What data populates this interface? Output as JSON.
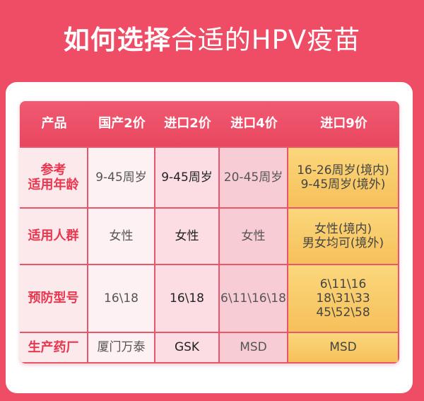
{
  "title": {
    "bold": "如何选择",
    "regular": "合适的HPV疫苗"
  },
  "table": {
    "headers": [
      "产品",
      "国产2价",
      "进口2价",
      "进口4价",
      "进口9价"
    ],
    "rows": [
      {
        "label": [
          "参考",
          "适用年龄"
        ],
        "cells": [
          [
            "9-45周岁"
          ],
          [
            "9-45周岁"
          ],
          [
            "20-45周岁"
          ],
          [
            "16-26周岁(境内)",
            "9-45周岁(境外)"
          ]
        ]
      },
      {
        "label": [
          "适用人群"
        ],
        "cells": [
          [
            "女性"
          ],
          [
            "女性"
          ],
          [
            "女性"
          ],
          [
            "女性(境内)",
            "男女均可(境外)"
          ]
        ]
      },
      {
        "label": [
          "预防型号"
        ],
        "cells": [
          [
            "16\\18"
          ],
          [
            "16\\18"
          ],
          [
            "6\\11\\16\\18"
          ],
          [
            "6\\11\\16",
            "18\\31\\33",
            "45\\52\\58"
          ]
        ]
      },
      {
        "label": [
          "生产药厂"
        ],
        "cells": [
          [
            "厦门万泰"
          ],
          [
            "GSK"
          ],
          [
            "MSD"
          ],
          [
            "MSD"
          ]
        ]
      }
    ]
  }
}
